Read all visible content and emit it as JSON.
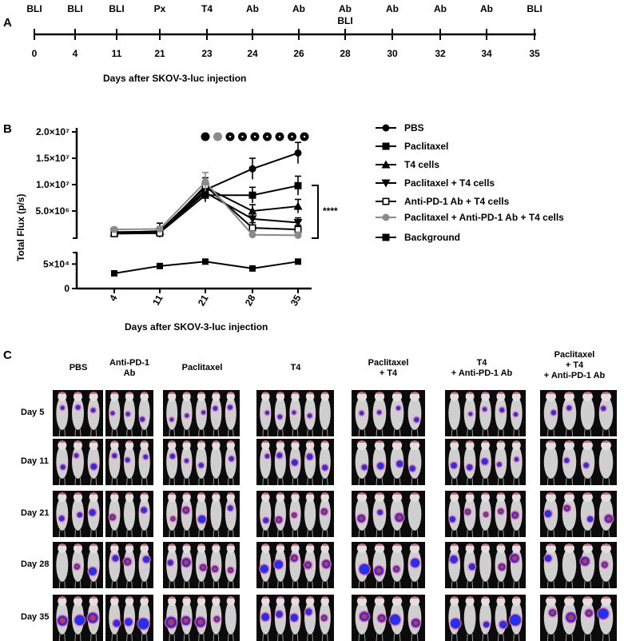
{
  "panel_letters": {
    "a": "A",
    "b": "B",
    "c": "C"
  },
  "timeline": {
    "events": [
      {
        "top": "BLI",
        "day": "0"
      },
      {
        "top": "BLI",
        "day": "4"
      },
      {
        "top": "BLI",
        "day": "11"
      },
      {
        "top": "Px",
        "day": "21"
      },
      {
        "top": "T4",
        "day": "23"
      },
      {
        "top": "Ab",
        "day": "24"
      },
      {
        "top": "Ab",
        "day": "26"
      },
      {
        "top": "Ab\nBLI",
        "day": "28"
      },
      {
        "top": "Ab",
        "day": "30"
      },
      {
        "top": "Ab",
        "day": "32"
      },
      {
        "top": "Ab",
        "day": "34"
      },
      {
        "top": "BLI",
        "day": "35"
      }
    ],
    "caption": "Days after SKOV-3-luc injection"
  },
  "chart_data": {
    "type": "line",
    "ylabel": "Total Flux (p/s)",
    "xlabel": "Days after SKOV-3-luc injection",
    "x": [
      4,
      11,
      21,
      28,
      35
    ],
    "x_tick_labels": [
      "4",
      "11",
      "21",
      "28",
      "35"
    ],
    "y_upper_ticks": [
      "2.0×10⁷",
      "1.5×10⁷",
      "1.0×10⁷",
      "5.0×10⁶"
    ],
    "y_upper_values": [
      20000000,
      15000000,
      10000000,
      5000000
    ],
    "y_lower_ticks": [
      "5×10⁴",
      "0"
    ],
    "y_lower_values": [
      50000,
      0
    ],
    "upper_range": [
      0,
      20000000
    ],
    "lower_range": [
      0,
      80000
    ],
    "significance": "****",
    "top_markers": [
      {
        "color": "#000000",
        "style": "filled"
      },
      {
        "color": "#8a8a8a",
        "style": "filled"
      },
      {
        "color": "#000000",
        "style": "dotted"
      },
      {
        "color": "#000000",
        "style": "dotted"
      },
      {
        "color": "#000000",
        "style": "dotted"
      },
      {
        "color": "#000000",
        "style": "dotted"
      },
      {
        "color": "#000000",
        "style": "dotted"
      },
      {
        "color": "#000000",
        "style": "dotted"
      },
      {
        "color": "#000000",
        "style": "dotted"
      }
    ],
    "series": [
      {
        "name": "PBS",
        "marker": "circle",
        "color": "#000000",
        "axis": "upper",
        "values": [
          1000000,
          1000000,
          9000000,
          13000000,
          16000000
        ],
        "errors": [
          500000,
          500000,
          1500000,
          2000000,
          2000000
        ]
      },
      {
        "name": "Paclitaxel",
        "marker": "square",
        "color": "#000000",
        "axis": "upper",
        "values": [
          800000,
          900000,
          8000000,
          8000000,
          9800000
        ],
        "errors": [
          400000,
          400000,
          1300000,
          1500000,
          1800000
        ]
      },
      {
        "name": "T4 cells",
        "marker": "triangle-up",
        "color": "#000000",
        "axis": "upper",
        "values": [
          900000,
          1200000,
          9500000,
          5000000,
          5900000
        ],
        "errors": [
          400000,
          1500000,
          1200000,
          1200000,
          1300000
        ]
      },
      {
        "name": "Paclitaxel + T4 cells",
        "marker": "triangle-down",
        "color": "#000000",
        "axis": "upper",
        "values": [
          1000000,
          1100000,
          8500000,
          3500000,
          2800000
        ],
        "errors": [
          400000,
          500000,
          1100000,
          1000000,
          900000
        ]
      },
      {
        "name": "Anti-PD-1 Ab + T4 cells",
        "marker": "open-square",
        "color": "#000000",
        "axis": "upper",
        "values": [
          700000,
          800000,
          9800000,
          1800000,
          1500000
        ],
        "errors": [
          300000,
          400000,
          1500000,
          1000000,
          800000
        ]
      },
      {
        "name": "Paclitaxel + Anti-PD-1 Ab + T4 cells",
        "marker": "circle",
        "color": "#8a8a8a",
        "axis": "upper",
        "values": [
          1500000,
          1600000,
          10500000,
          500000,
          400000
        ],
        "errors": [
          400000,
          400000,
          1800000,
          700000,
          600000
        ]
      },
      {
        "name": "Background",
        "marker": "square",
        "color": "#000000",
        "axis": "lower",
        "values": [
          31000,
          46000,
          55000,
          41000,
          55000
        ],
        "errors": [
          0,
          0,
          0,
          0,
          0
        ]
      }
    ]
  },
  "images": {
    "headers": [
      "PBS",
      "Anti-PD-1\nAb",
      "Paclitaxel",
      "T4",
      "Paclitaxel\n+ T4",
      "T4\n+ Anti-PD-1 Ab",
      "Paclitaxel\n+ T4\n+ Anti-PD-1 Ab"
    ],
    "days": [
      "Day 5",
      "Day 11",
      "Day 21",
      "Day 28",
      "Day 35"
    ]
  }
}
